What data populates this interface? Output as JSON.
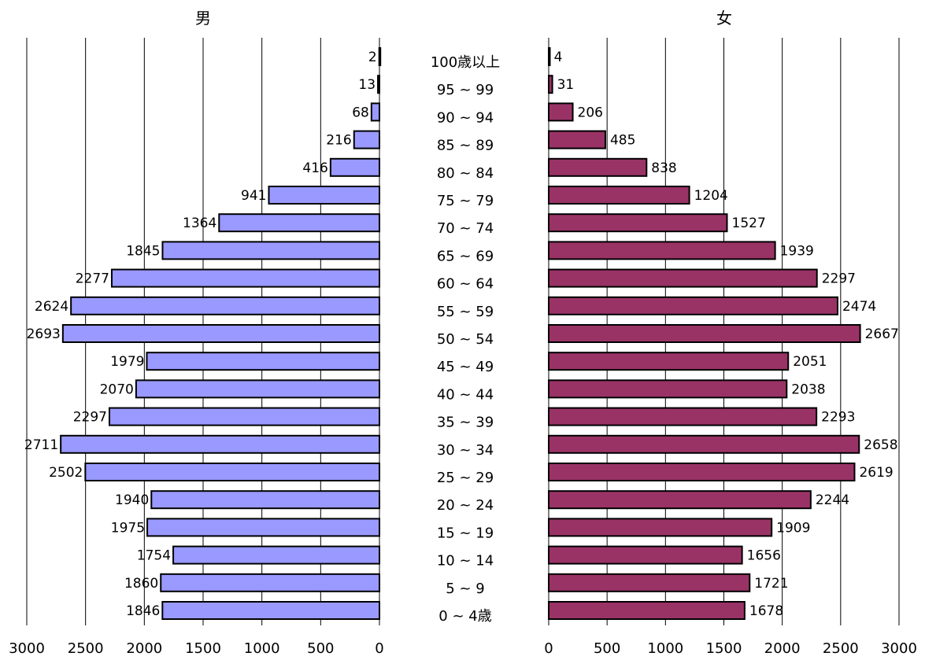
{
  "chart_data": {
    "type": "bar",
    "orientation": "horizontal",
    "layout": "population-pyramid",
    "grid": true,
    "categories": [
      "100歳以上",
      "95 ~ 99",
      "90 ~ 94",
      "85 ~ 89",
      "80 ~ 84",
      "75 ~ 79",
      "70 ~ 74",
      "65 ~ 69",
      "60 ~ 64",
      "55 ~ 59",
      "50 ~ 54",
      "45 ~ 49",
      "40 ~ 44",
      "35 ~ 39",
      "30 ~ 34",
      "25 ~ 29",
      "20 ~ 24",
      "15 ~ 19",
      "10 ~ 14",
      "5 ~ 9",
      "0 ~ 4歳"
    ],
    "series": [
      {
        "name": "男",
        "color": "#9999ff",
        "values": [
          2,
          13,
          68,
          216,
          416,
          941,
          1364,
          1845,
          2277,
          2624,
          2693,
          1979,
          2070,
          2297,
          2711,
          2502,
          1940,
          1975,
          1754,
          1860,
          1846
        ]
      },
      {
        "name": "女",
        "color": "#993366",
        "values": [
          4,
          31,
          206,
          485,
          838,
          1204,
          1527,
          1939,
          2297,
          2474,
          2667,
          2051,
          2038,
          2293,
          2658,
          2619,
          2244,
          1909,
          1656,
          1721,
          1678
        ]
      }
    ],
    "xlim": [
      0,
      3000
    ],
    "xticks": [
      "0",
      "500",
      "1000",
      "1500",
      "2000",
      "2500",
      "3000"
    ]
  }
}
